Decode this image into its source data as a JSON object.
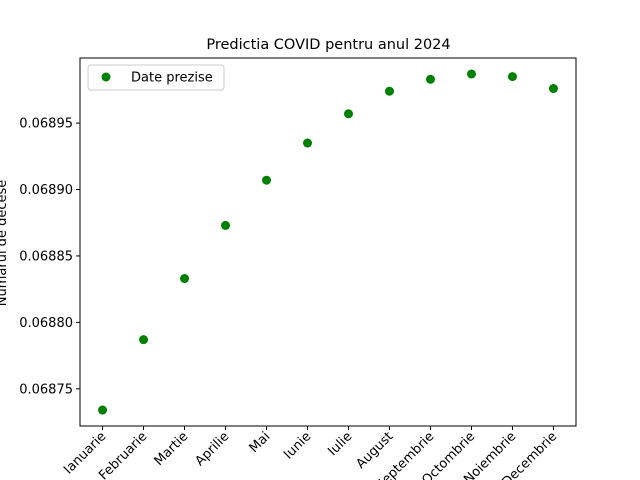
{
  "chart_data": {
    "type": "scatter",
    "title": "Predictia COVID pentru anul 2024",
    "xlabel": "",
    "ylabel": "Numarul de decese",
    "categories": [
      "Ianuarie",
      "Februarie",
      "Martie",
      "Aprilie",
      "Mai",
      "Iunie",
      "Iulie",
      "August",
      "Septembrie",
      "Octombrie",
      "Noiembrie",
      "Decembrie"
    ],
    "series": [
      {
        "name": "Date prezise",
        "color": "#008000",
        "values": [
          0.068734,
          0.068787,
          0.068833,
          0.068873,
          0.068907,
          0.068935,
          0.068957,
          0.068974,
          0.068983,
          0.068987,
          0.068985,
          0.068976
        ]
      }
    ],
    "ylim": [
      0.068722,
      0.068999
    ],
    "yticks": [
      0.06875,
      0.0688,
      0.06885,
      0.0689,
      0.06895
    ],
    "ytick_labels": [
      "0.06875",
      "0.06880",
      "0.06885",
      "0.06890",
      "0.06895"
    ],
    "grid": false,
    "legend": "top-left"
  }
}
